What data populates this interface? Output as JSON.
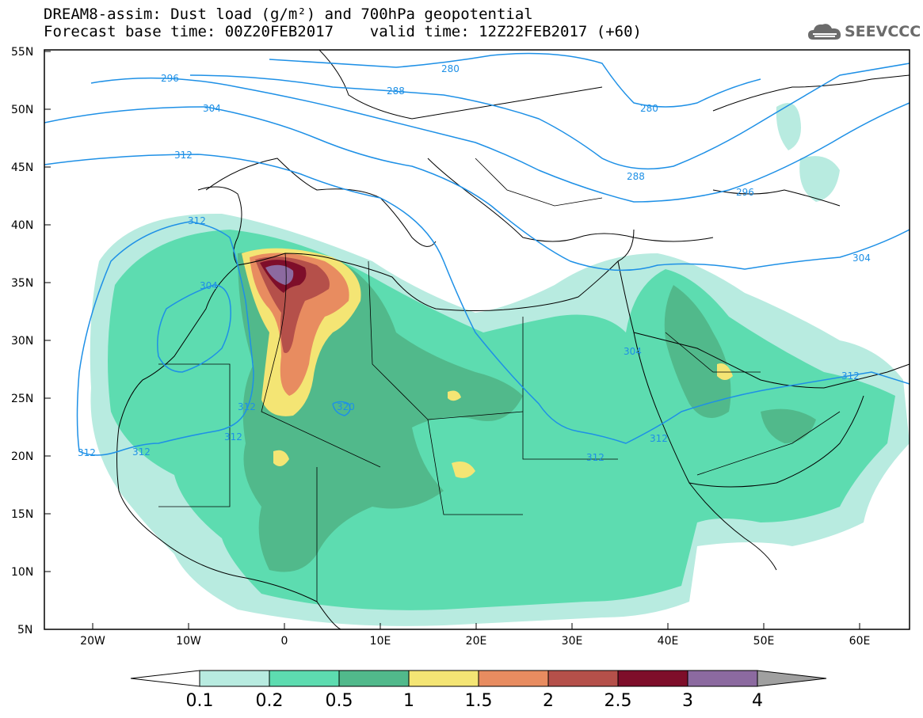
{
  "header": {
    "title_line1": "DREAM8-assim: Dust load (g/m²) and 700hPa geopotential",
    "title_line2": "Forecast base time: 00Z20FEB2017    valid time: 12Z22FEB2017 (+60)"
  },
  "logo": {
    "text": "SEEVCCC",
    "icon": "cloud-icon"
  },
  "map": {
    "lat_labels": [
      "55N",
      "50N",
      "45N",
      "40N",
      "35N",
      "30N",
      "25N",
      "20N",
      "15N",
      "10N",
      "5N"
    ],
    "lon_labels": [
      "20W",
      "10W",
      "0",
      "10E",
      "20E",
      "30E",
      "40E",
      "50E",
      "60E"
    ],
    "lat_range": [
      5,
      55
    ],
    "lon_range": [
      -25,
      65
    ],
    "contour_labels": [
      "280",
      "288",
      "296",
      "304",
      "312",
      "320"
    ],
    "contour_color": "#1e90e6"
  },
  "colorbar": {
    "labels": [
      "0.1",
      "0.2",
      "0.5",
      "1",
      "1.5",
      "2",
      "2.5",
      "3",
      "4"
    ],
    "colors": [
      "#ffffff",
      "#b8ebe0",
      "#5ddcb0",
      "#51b98b",
      "#f4e574",
      "#e88c60",
      "#b5504a",
      "#7e0e2a",
      "#8c6aa0",
      "#a0a0a0"
    ]
  }
}
